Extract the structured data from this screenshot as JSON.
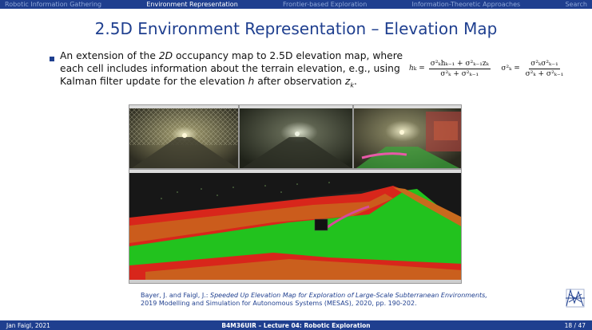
{
  "nav": {
    "items": [
      {
        "label": "Robotic Information Gathering",
        "active": false
      },
      {
        "label": "Environment Representation",
        "active": true
      },
      {
        "label": "Frontier-based Exploration",
        "active": false
      },
      {
        "label": "Information-Theoretic Approaches",
        "active": false
      },
      {
        "label": "Search",
        "active": false
      }
    ]
  },
  "slide": {
    "title": "2.5D Environment Representation – Elevation Map",
    "bullet": {
      "part1": "An extension of the ",
      "em1": "2D",
      "part2": " occupancy map to 2.5D elevation map, where each cell includes information about the terrain elevation, e.g., using Kalman filter update for the elevation ",
      "em2": "h",
      "part3": " after observation ",
      "em3": "z",
      "em3_sub": "k",
      "part4": "."
    },
    "formula": {
      "lhs1": "h",
      "lhs1_sub": "k",
      "num1": "σ²ₖhₖ₋₁ + σ²ₖ₋₁zₖ",
      "den1": "σ²ₖ + σ²ₖ₋₁",
      "lhs2": "σ²ₖ",
      "num2": "σ²ₖσ²ₖ₋₁",
      "den2": "σ²ₖ + σ²ₖ₋₁"
    },
    "citation": {
      "authors": "Bayer, J. and Faigl, J.: ",
      "title": "Speeded Up Elevation Map for Exploration of Large-Scale Subterranean Environments,",
      "venue": "2019 Modelling and Simulation for Autonomous Systems (MESAS), 2020, pp. 190-202."
    }
  },
  "footer": {
    "author": "Jan Faigl, 2021",
    "course": "B4M36UIR – Lecture 04: Robotic Exploration",
    "page": "18 / 47"
  },
  "colors": {
    "accent": "#1f3f8f",
    "cell_green": "#22c21e",
    "cell_red": "#d8261b",
    "cell_orange": "#c86a1d"
  }
}
